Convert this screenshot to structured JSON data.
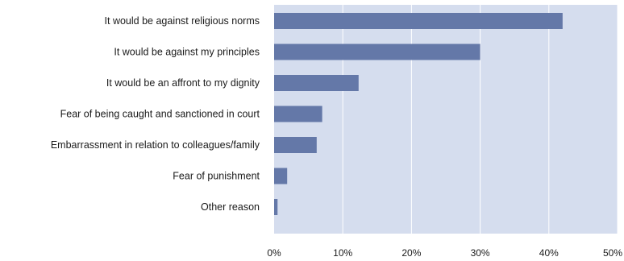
{
  "chart_data": {
    "type": "bar",
    "orientation": "horizontal",
    "categories": [
      "It would be against religious norms",
      "It would be against my principles",
      "It would be an affront to my dignity",
      "Fear of being caught and sanctioned in court",
      "Embarrassment in relation to colleagues/family",
      "Fear of punishment",
      "Other reason"
    ],
    "values": [
      42,
      30,
      12.3,
      7,
      6.2,
      1.9,
      0.5
    ],
    "xlim": [
      0,
      50
    ],
    "x_ticks": [
      0,
      10,
      20,
      30,
      40,
      50
    ],
    "x_tick_labels": [
      "0%",
      "10%",
      "20%",
      "30%",
      "40%",
      "50%"
    ],
    "title": "",
    "xlabel": "",
    "ylabel": "",
    "grid": true,
    "grid_axis": "x",
    "legend": "none",
    "colors": {
      "bar": "#6478a8",
      "plot_background": "#d5ddee",
      "gridline": "#ffffff",
      "text": "#1a1a1a"
    }
  }
}
